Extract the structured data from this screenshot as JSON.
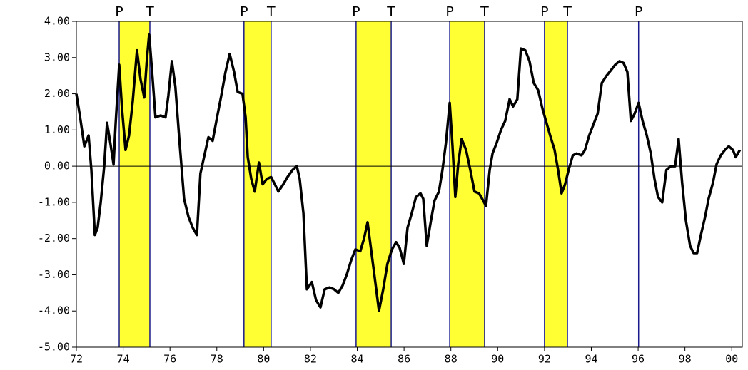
{
  "chart_data": {
    "type": "line",
    "x": [
      72.0,
      72.15,
      72.34,
      72.52,
      72.64,
      72.79,
      72.91,
      73.04,
      73.19,
      73.31,
      73.46,
      73.59,
      73.68,
      73.83,
      73.95,
      74.1,
      74.25,
      74.41,
      74.59,
      74.74,
      74.9,
      75.02,
      75.11,
      75.26,
      75.38,
      75.6,
      75.81,
      75.93,
      76.08,
      76.23,
      76.41,
      76.6,
      76.79,
      76.97,
      77.15,
      77.3,
      77.49,
      77.64,
      77.82,
      78.01,
      78.19,
      78.37,
      78.55,
      78.74,
      78.89,
      79.1,
      79.23,
      79.32,
      79.47,
      79.62,
      79.8,
      79.96,
      80.14,
      80.32,
      80.48,
      80.63,
      80.84,
      81.02,
      81.24,
      81.42,
      81.54,
      81.7,
      81.85,
      82.06,
      82.24,
      82.43,
      82.61,
      82.82,
      83.01,
      83.19,
      83.37,
      83.55,
      83.74,
      83.92,
      84.13,
      84.29,
      84.44,
      84.59,
      84.77,
      84.93,
      85.11,
      85.29,
      85.48,
      85.66,
      85.81,
      85.99,
      86.15,
      86.33,
      86.51,
      86.7,
      86.82,
      86.97,
      87.15,
      87.3,
      87.49,
      87.64,
      87.79,
      87.95,
      88.07,
      88.19,
      88.31,
      88.46,
      88.65,
      88.83,
      89.01,
      89.2,
      89.38,
      89.5,
      89.66,
      89.78,
      89.96,
      90.14,
      90.32,
      90.51,
      90.66,
      90.84,
      90.99,
      91.18,
      91.36,
      91.54,
      91.73,
      91.91,
      92.06,
      92.24,
      92.43,
      92.58,
      92.73,
      92.88,
      93.03,
      93.21,
      93.37,
      93.58,
      93.73,
      93.91,
      94.09,
      94.27,
      94.45,
      94.65,
      94.84,
      95.02,
      95.2,
      95.38,
      95.54,
      95.69,
      95.85,
      96.02,
      96.19,
      96.37,
      96.54,
      96.7,
      96.85,
      97.03,
      97.21,
      97.4,
      97.58,
      97.73,
      97.88,
      98.04,
      98.22,
      98.37,
      98.52,
      98.68,
      98.86,
      99.01,
      99.2,
      99.35,
      99.53,
      99.71,
      99.87,
      100.05,
      100.17,
      100.35
    ],
    "values": [
      2.0,
      1.4,
      0.55,
      0.85,
      -0.1,
      -1.9,
      -1.7,
      -1.0,
      0.0,
      1.2,
      0.6,
      0.05,
      1.2,
      2.8,
      1.6,
      0.45,
      0.85,
      1.8,
      3.2,
      2.4,
      1.9,
      3.0,
      3.65,
      2.4,
      1.35,
      1.4,
      1.35,
      1.95,
      2.9,
      2.2,
      0.65,
      -0.9,
      -1.4,
      -1.7,
      -1.9,
      -0.2,
      0.35,
      0.8,
      0.7,
      1.35,
      1.95,
      2.6,
      3.1,
      2.6,
      2.05,
      2.0,
      1.35,
      0.25,
      -0.35,
      -0.7,
      0.1,
      -0.5,
      -0.35,
      -0.3,
      -0.5,
      -0.7,
      -0.5,
      -0.3,
      -0.1,
      0.0,
      -0.35,
      -1.3,
      -3.4,
      -3.2,
      -3.7,
      -3.9,
      -3.4,
      -3.35,
      -3.4,
      -3.5,
      -3.3,
      -3.0,
      -2.6,
      -2.3,
      -2.35,
      -2.0,
      -1.55,
      -2.3,
      -3.2,
      -4.0,
      -3.4,
      -2.7,
      -2.3,
      -2.1,
      -2.25,
      -2.7,
      -1.7,
      -1.3,
      -0.85,
      -0.75,
      -0.9,
      -2.2,
      -1.5,
      -0.95,
      -0.7,
      -0.1,
      0.65,
      1.75,
      0.55,
      -0.85,
      0.05,
      0.75,
      0.45,
      -0.1,
      -0.7,
      -0.75,
      -0.95,
      -1.1,
      -0.1,
      0.35,
      0.65,
      1.0,
      1.25,
      1.85,
      1.65,
      1.85,
      3.25,
      3.2,
      2.9,
      2.3,
      2.1,
      1.6,
      1.25,
      0.85,
      0.45,
      -0.1,
      -0.75,
      -0.5,
      -0.1,
      0.3,
      0.35,
      0.3,
      0.45,
      0.85,
      1.15,
      1.45,
      2.3,
      2.5,
      2.65,
      2.8,
      2.9,
      2.85,
      2.6,
      1.25,
      1.45,
      1.75,
      1.25,
      0.85,
      0.35,
      -0.35,
      -0.85,
      -1.0,
      -0.1,
      0.0,
      0.0,
      0.75,
      -0.45,
      -1.5,
      -2.2,
      -2.4,
      -2.4,
      -1.9,
      -1.4,
      -0.9,
      -0.45,
      0.05,
      0.3,
      0.45,
      0.55,
      0.45,
      0.25,
      0.45
    ],
    "color": "#000000",
    "band_color": "#ffff33",
    "band_line_color": "#1a1a8c",
    "bands": [
      {
        "start": 73.83,
        "end": 75.14,
        "start_label": "P",
        "end_label": "T"
      },
      {
        "start": 79.16,
        "end": 80.32,
        "start_label": "P",
        "end_label": "T"
      },
      {
        "start": 83.95,
        "end": 85.45,
        "start_label": "P",
        "end_label": "T"
      },
      {
        "start": 87.95,
        "end": 89.44,
        "start_label": "P",
        "end_label": "T"
      },
      {
        "start": 92.0,
        "end": 92.98,
        "start_label": "P",
        "end_label": "T"
      },
      {
        "start": 96.02,
        "start_label": "P"
      }
    ],
    "hline": 0,
    "xlim": [
      72,
      100.45
    ],
    "xticks": [
      72,
      74,
      76,
      78,
      80,
      82,
      84,
      86,
      88,
      90,
      92,
      94,
      96,
      98,
      {
        "value": 100,
        "label": "00"
      }
    ],
    "ylim": [
      -5,
      4
    ],
    "yticks": [
      {
        "value": -5,
        "label": "-5.00"
      },
      {
        "value": -4,
        "label": "-4.00"
      },
      {
        "value": -3,
        "label": "-3.00"
      },
      {
        "value": -2,
        "label": "-2.00"
      },
      {
        "value": -1,
        "label": "-1.00"
      },
      {
        "value": 0,
        "label": "0.00"
      },
      {
        "value": 1,
        "label": "1.00"
      },
      {
        "value": 2,
        "label": "2.00"
      },
      {
        "value": 3,
        "label": "3.00"
      },
      {
        "value": 4,
        "label": "4.00"
      }
    ]
  }
}
